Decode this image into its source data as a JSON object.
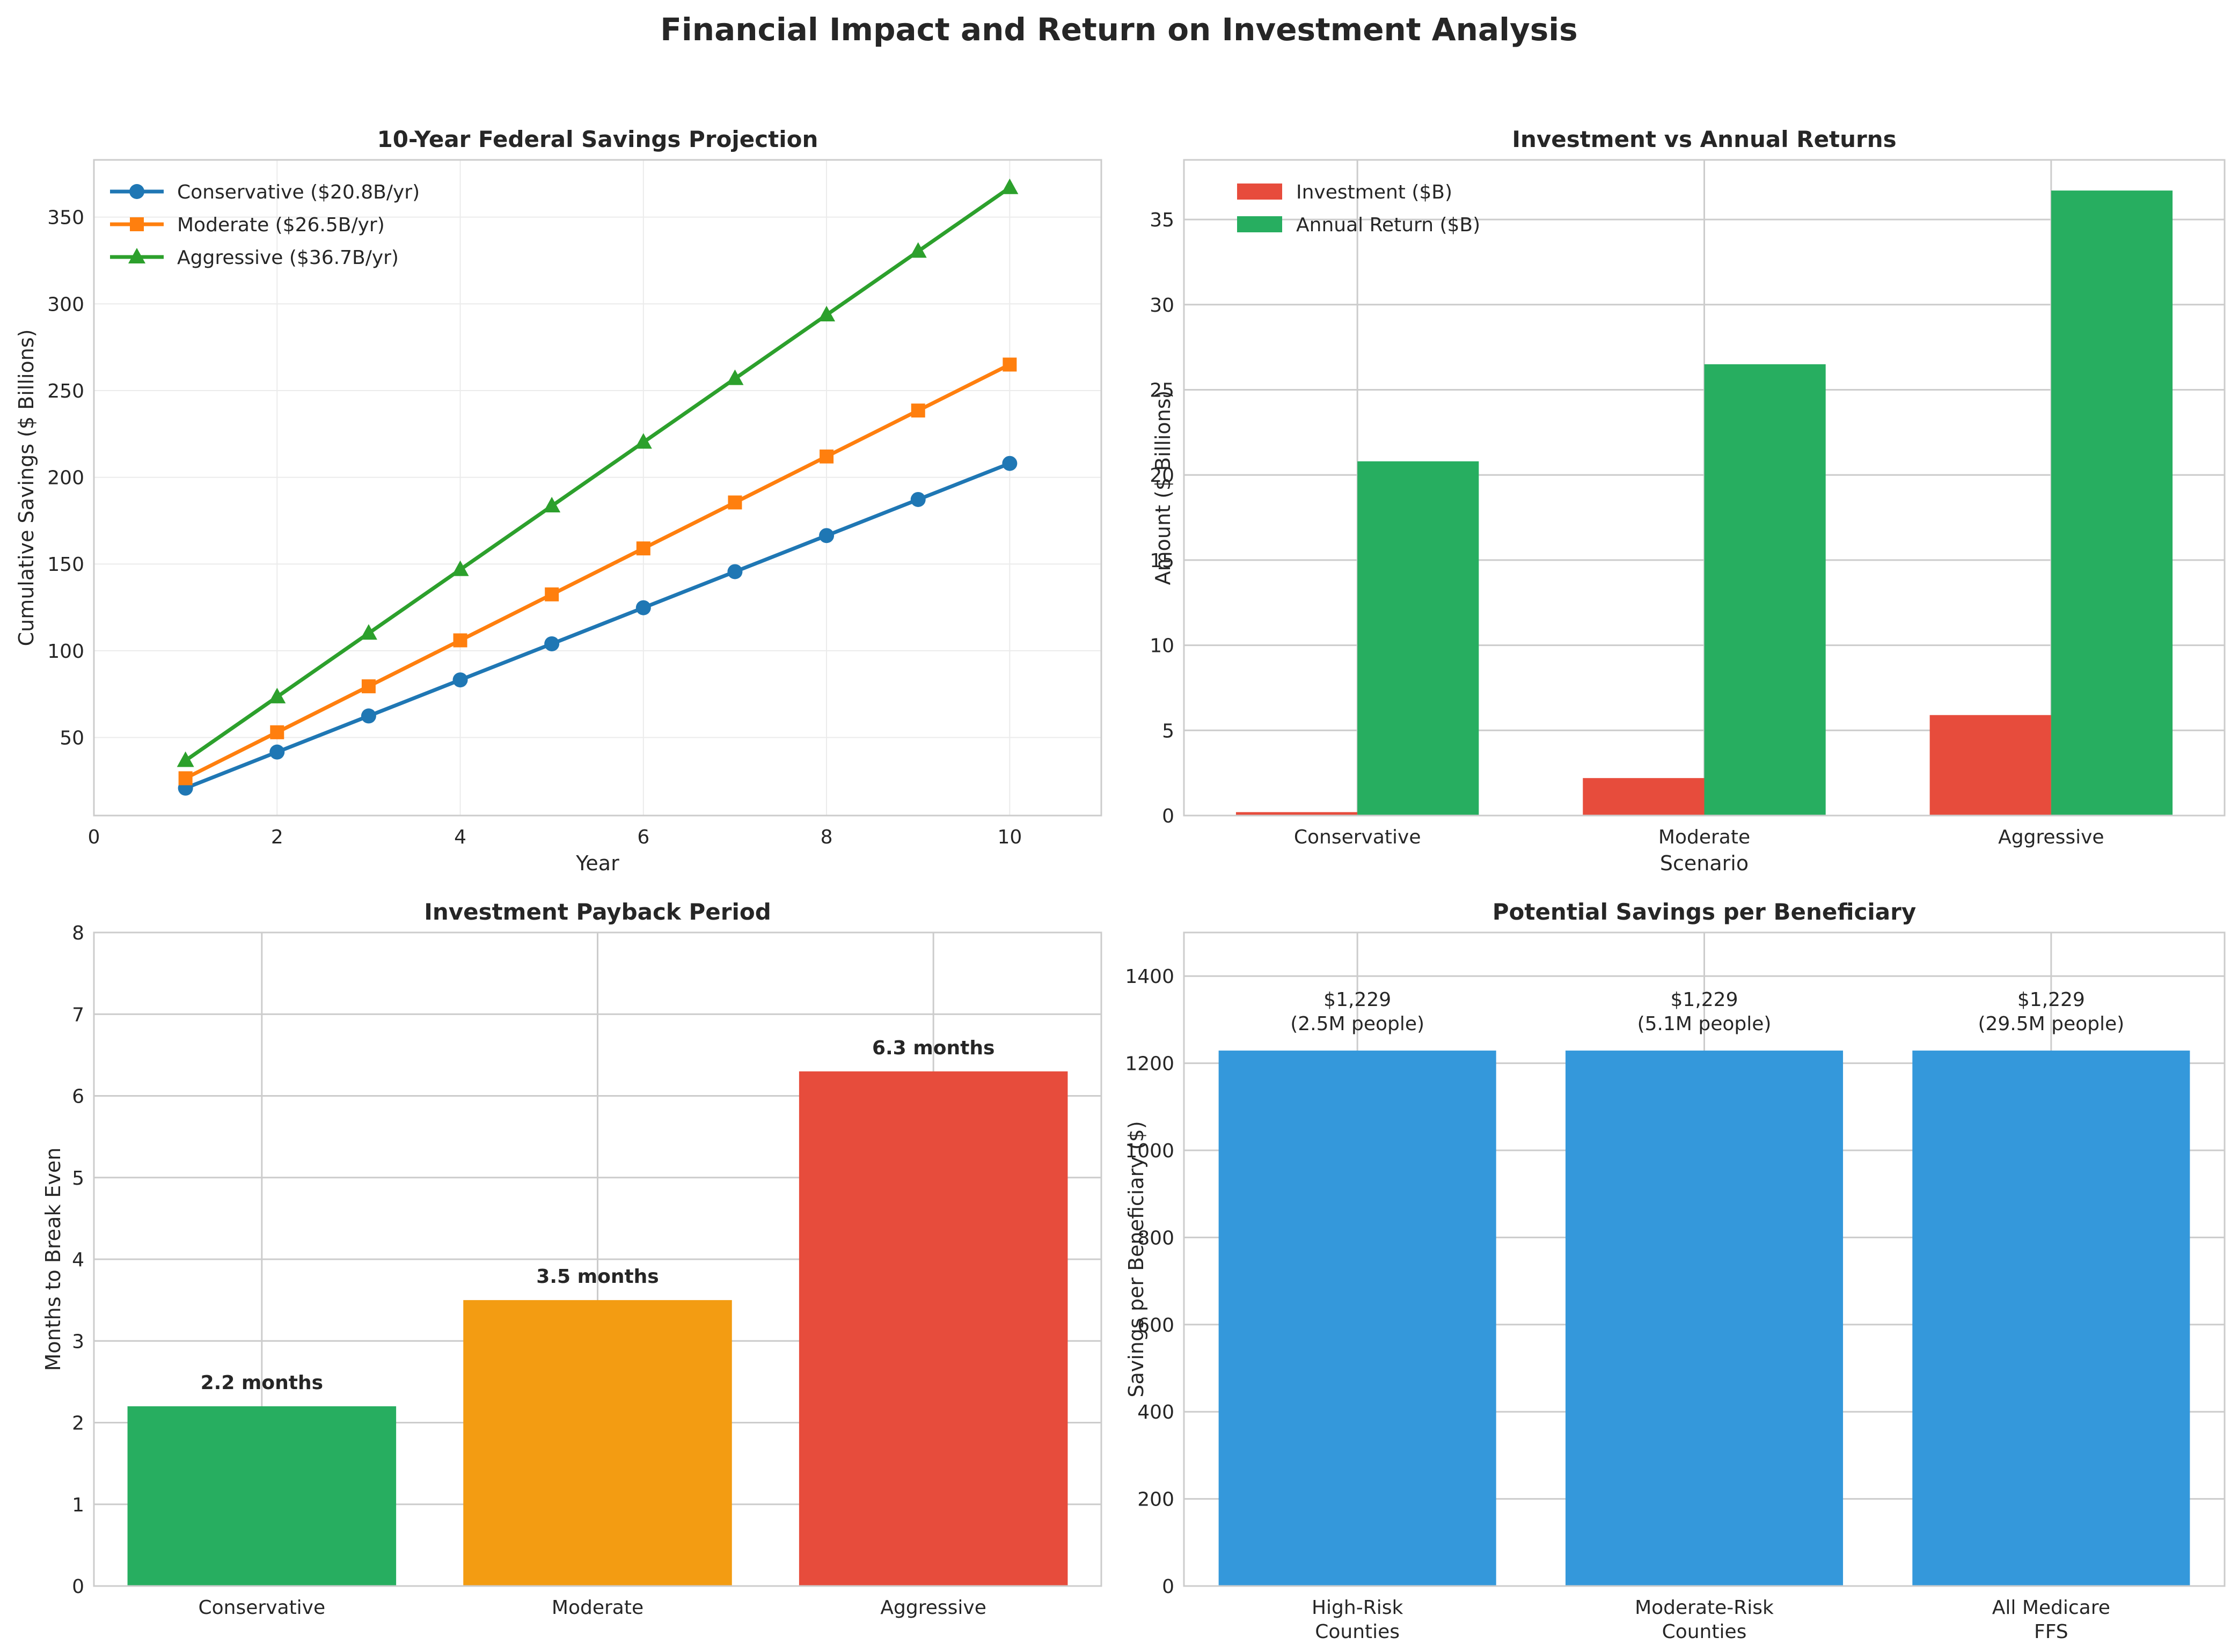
{
  "figure": {
    "title": "Financial Impact and Return on Investment Analysis"
  },
  "colors": {
    "conservative_line": "#1f77b4",
    "moderate_line": "#ff7f0e",
    "aggressive_line": "#2ca02c",
    "investment_bar": "#e74c3c",
    "return_bar": "#27ae60",
    "payback_green": "#27ae60",
    "payback_orange": "#f39c12",
    "payback_red": "#e74c3c",
    "beneficiary_bar": "#3498db",
    "grid": "#cccccc",
    "axes_edge": "#cccccc"
  },
  "chart_data": [
    {
      "type": "line",
      "title": "10-Year Federal Savings Projection",
      "xlabel": "Year",
      "ylabel": "Cumulative Savings ($ Billions)",
      "xlim": [
        0,
        11
      ],
      "ylim": [
        5,
        383
      ],
      "xticks": [
        0,
        2,
        4,
        6,
        8,
        10
      ],
      "yticks": [
        50,
        100,
        150,
        200,
        250,
        300,
        350
      ],
      "grid": true,
      "legend_position": "top-left",
      "x": [
        1,
        2,
        3,
        4,
        5,
        6,
        7,
        8,
        9,
        10
      ],
      "series": [
        {
          "name": "Conservative ($20.8B/yr)",
          "marker": "circle",
          "color": "#1f77b4",
          "values": [
            20.8,
            41.6,
            62.4,
            83.2,
            104.0,
            124.8,
            145.6,
            166.4,
            187.2,
            208.0
          ]
        },
        {
          "name": "Moderate ($26.5B/yr)",
          "marker": "square",
          "color": "#ff7f0e",
          "values": [
            26.5,
            53.0,
            79.5,
            106.0,
            132.5,
            159.0,
            185.5,
            212.0,
            238.5,
            265.0
          ]
        },
        {
          "name": "Aggressive ($36.7B/yr)",
          "marker": "triangle",
          "color": "#2ca02c",
          "values": [
            36.7,
            73.4,
            110.1,
            146.8,
            183.5,
            220.2,
            256.9,
            293.6,
            330.3,
            367.0
          ]
        }
      ]
    },
    {
      "type": "bar",
      "title": "Investment vs Annual Returns",
      "xlabel": "Scenario",
      "ylabel": "Amount ($ Billions)",
      "ylim": [
        0,
        38.5
      ],
      "yticks": [
        0,
        5,
        10,
        15,
        20,
        25,
        30,
        35
      ],
      "grid": true,
      "legend_position": "top-left",
      "categories": [
        "Conservative",
        "Moderate",
        "Aggressive"
      ],
      "series": [
        {
          "name": "Investment ($B)",
          "color": "#e74c3c",
          "values": [
            0.2,
            2.2,
            5.9
          ]
        },
        {
          "name": "Annual Return ($B)",
          "color": "#27ae60",
          "values": [
            20.8,
            26.5,
            36.7
          ]
        }
      ]
    },
    {
      "type": "bar",
      "title": "Investment Payback Period",
      "xlabel": "",
      "ylabel": "Months to Break Even",
      "ylim": [
        0,
        8
      ],
      "yticks": [
        0,
        1,
        2,
        3,
        4,
        5,
        6,
        7,
        8
      ],
      "grid": true,
      "categories": [
        "Conservative",
        "Moderate",
        "Aggressive"
      ],
      "values": [
        2.2,
        3.5,
        6.3
      ],
      "colors": [
        "#27ae60",
        "#f39c12",
        "#e74c3c"
      ],
      "data_labels": [
        "2.2 months",
        "3.5 months",
        "6.3 months"
      ]
    },
    {
      "type": "bar",
      "title": "Potential Savings per Beneficiary",
      "xlabel": "",
      "ylabel": "Savings per Beneficiary ($)",
      "ylim": [
        0,
        1500
      ],
      "yticks": [
        0,
        200,
        400,
        600,
        800,
        1000,
        1200,
        1400
      ],
      "grid": true,
      "categories": [
        [
          "High-Risk",
          "Counties"
        ],
        [
          "Moderate-Risk",
          "Counties"
        ],
        [
          "All Medicare",
          "FFS"
        ]
      ],
      "values": [
        1229,
        1229,
        1229
      ],
      "color": "#3498db",
      "data_labels": [
        [
          "$1,229",
          "(2.5M people)"
        ],
        [
          "$1,229",
          "(5.1M people)"
        ],
        [
          "$1,229",
          "(29.5M people)"
        ]
      ]
    }
  ]
}
